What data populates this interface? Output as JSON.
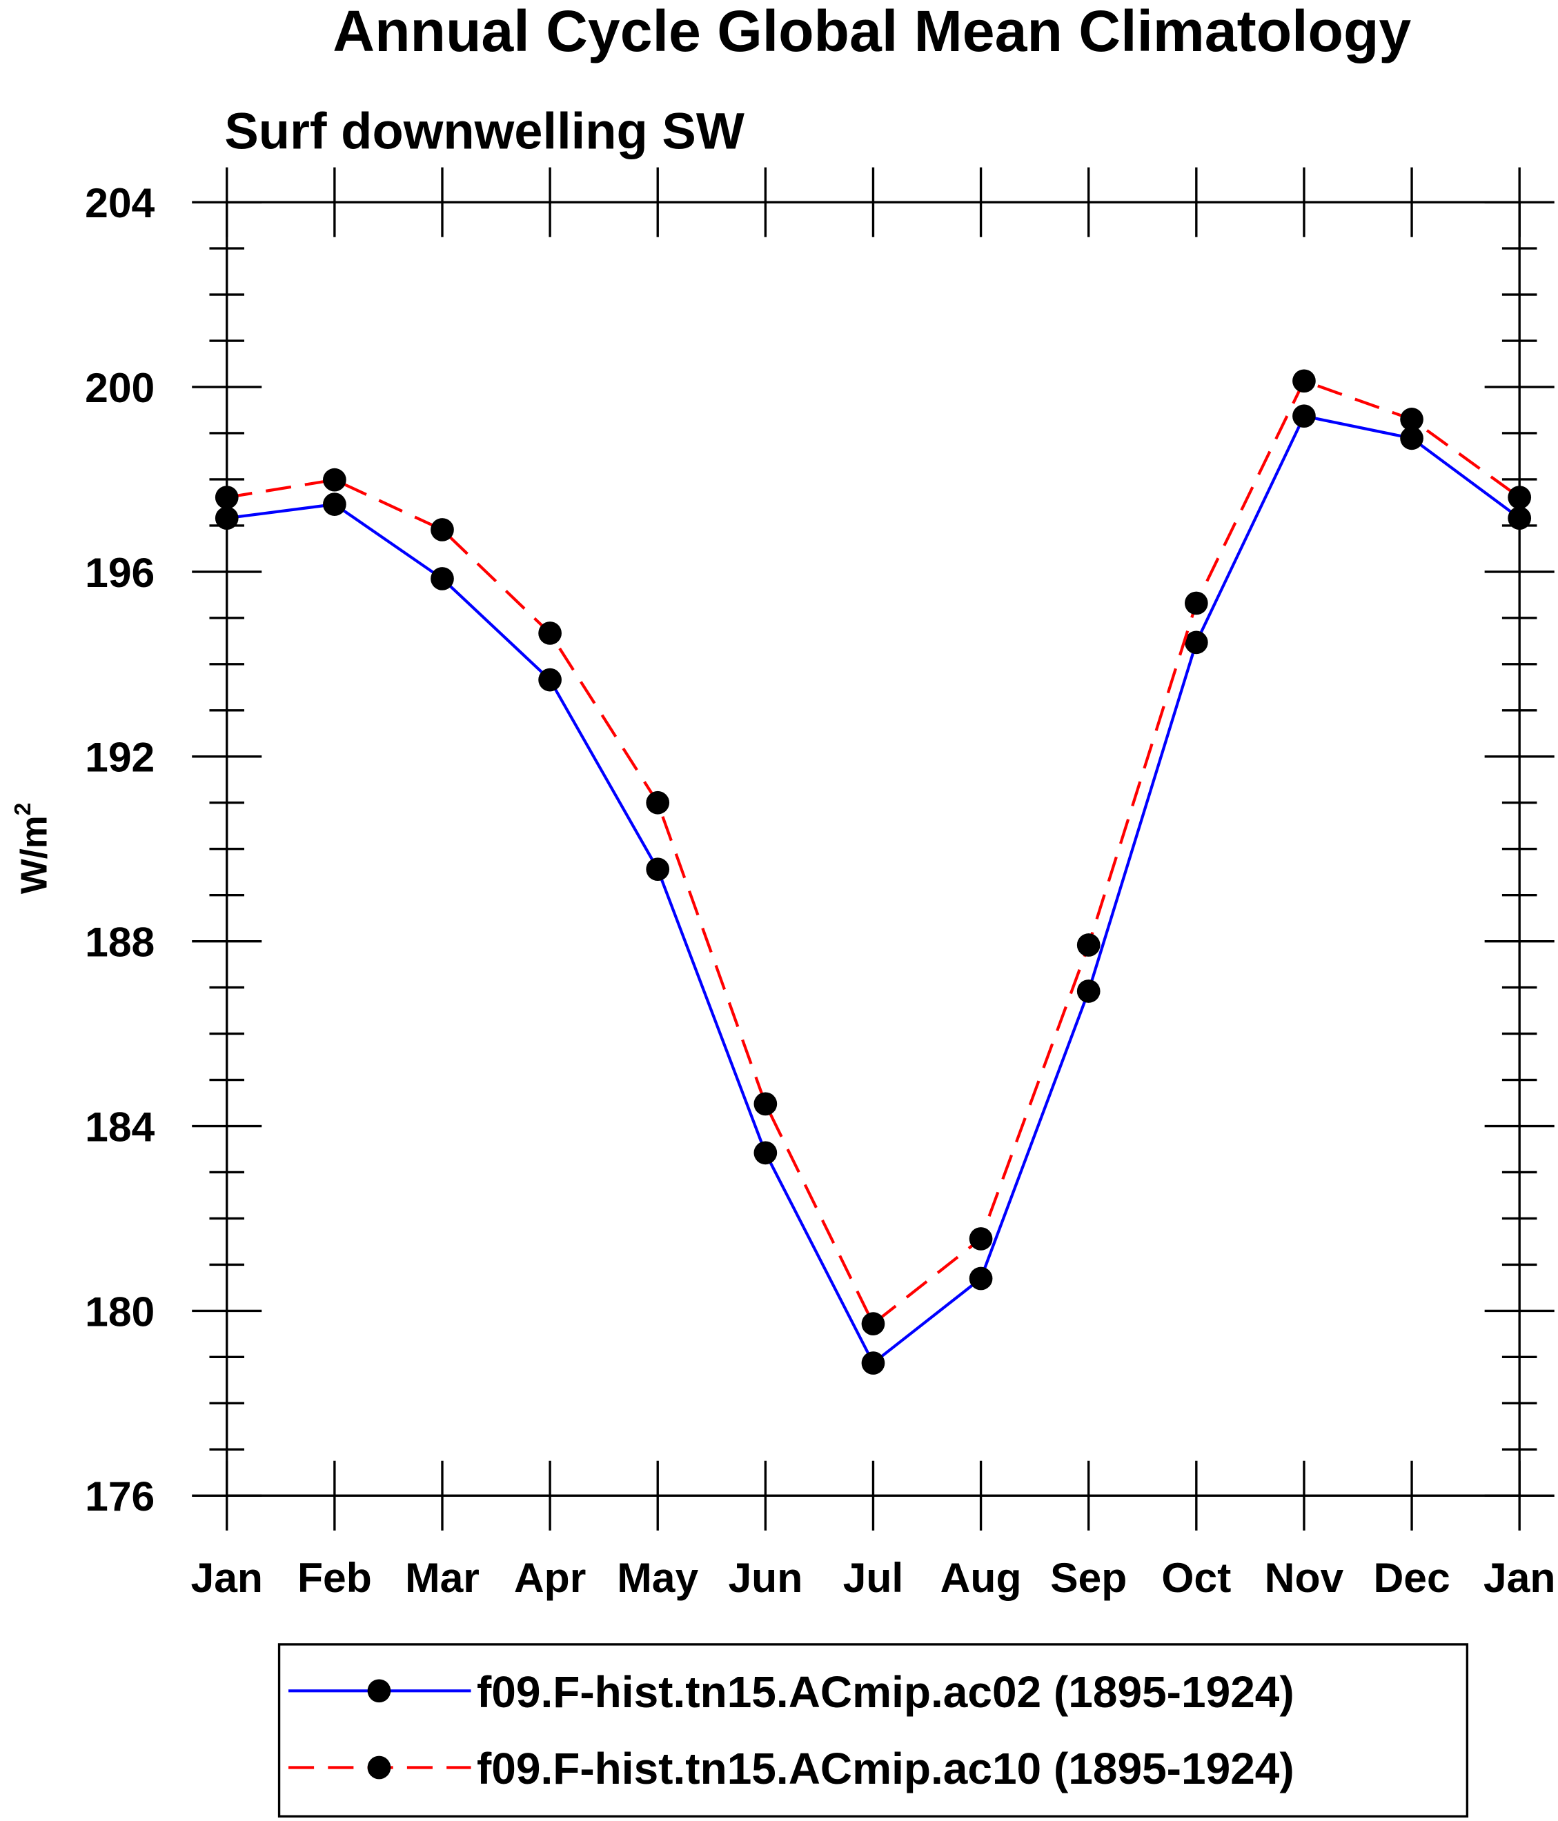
{
  "chart_data": {
    "type": "line",
    "title": "Annual Cycle Global Mean Climatology",
    "subtitle": "Surf downwelling SW",
    "xlabel": "",
    "ylabel": "W/m",
    "ylabel_superscript": "2",
    "categories": [
      "Jan",
      "Feb",
      "Mar",
      "Apr",
      "May",
      "Jun",
      "Jul",
      "Aug",
      "Sep",
      "Oct",
      "Nov",
      "Dec",
      "Jan"
    ],
    "ylim": [
      176,
      204
    ],
    "yticks": [
      176,
      180,
      184,
      188,
      192,
      196,
      200,
      204
    ],
    "y_minor_step": 1,
    "grid": false,
    "legend_placement": "bottom",
    "series": [
      {
        "name": "f09.F-hist.tn15.ACmip.ac02 (1895-1924)",
        "color": "#0000ff",
        "dash": "solid",
        "values": [
          197.16,
          197.46,
          195.85,
          193.66,
          189.56,
          183.42,
          178.87,
          180.7,
          186.92,
          194.47,
          199.37,
          198.89,
          197.16
        ]
      },
      {
        "name": "f09.F-hist.tn15.ACmip.ac10 (1895-1924)",
        "color": "#ff0000",
        "dash": "dashed",
        "values": [
          197.61,
          197.99,
          196.91,
          194.67,
          191.0,
          184.48,
          179.72,
          181.56,
          187.92,
          195.32,
          200.13,
          199.3,
          197.61
        ]
      }
    ]
  }
}
